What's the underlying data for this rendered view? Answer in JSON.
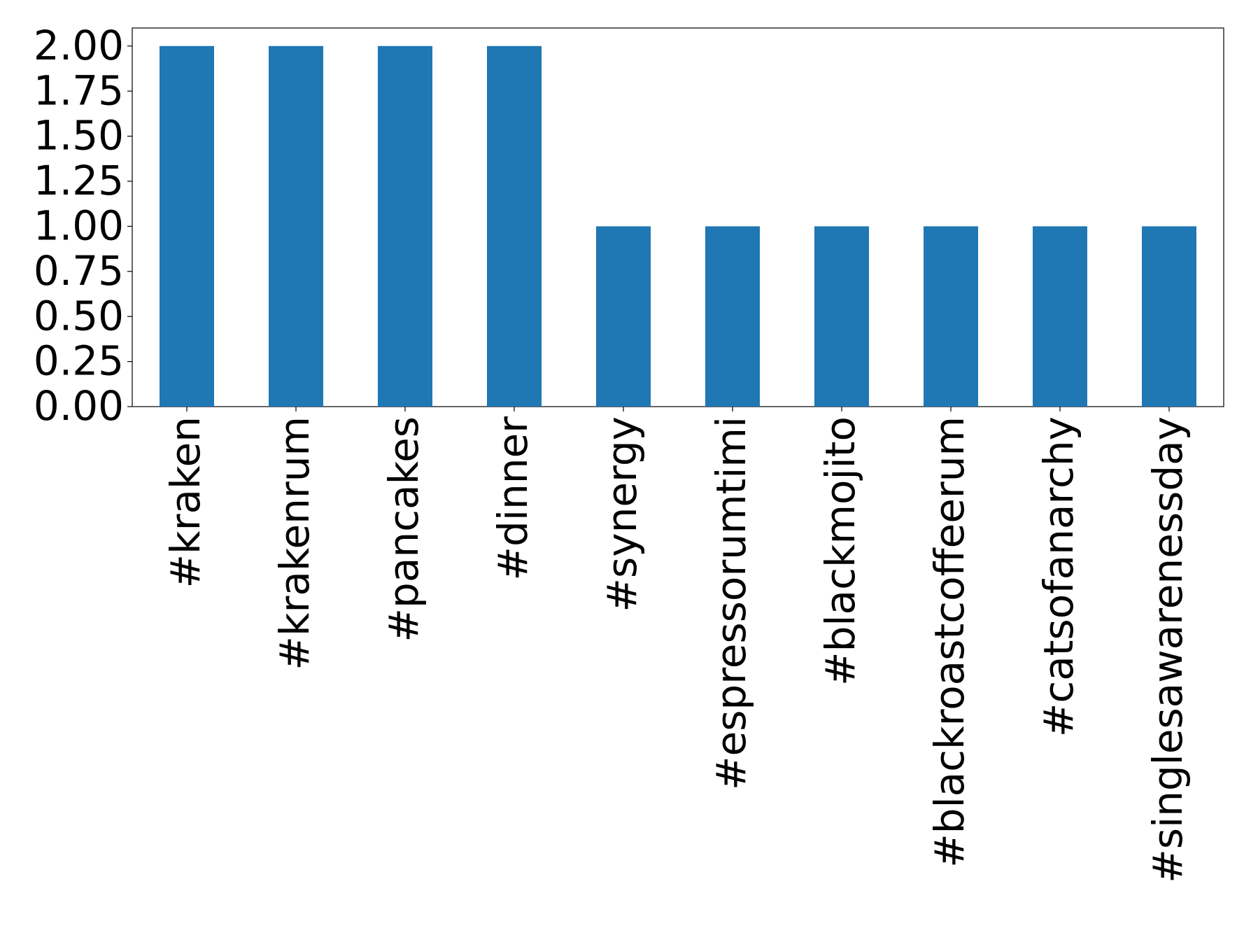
{
  "chart_data": {
    "type": "bar",
    "categories": [
      "#kraken",
      "#krakenrum",
      "#pancakes",
      "#dinner",
      "#synergy",
      "#espressorumtimi",
      "#blackmojito",
      "#blackroastcoffeerum",
      "#catsofanarchy",
      "#singlesawarenessday"
    ],
    "values": [
      2,
      2,
      2,
      2,
      1,
      1,
      1,
      1,
      1,
      1
    ],
    "color": "#1f77b4",
    "ylim": [
      0,
      2.1
    ],
    "yticks": [
      {
        "value": 0,
        "label": "0.00"
      },
      {
        "value": 0.25,
        "label": "0.25"
      },
      {
        "value": 0.5,
        "label": "0.50"
      },
      {
        "value": 0.75,
        "label": "0.75"
      },
      {
        "value": 1,
        "label": "1.00"
      },
      {
        "value": 1.25,
        "label": "1.25"
      },
      {
        "value": 1.5,
        "label": "1.50"
      },
      {
        "value": 1.75,
        "label": "1.75"
      },
      {
        "value": 2,
        "label": "2.00"
      }
    ],
    "grid": false
  }
}
